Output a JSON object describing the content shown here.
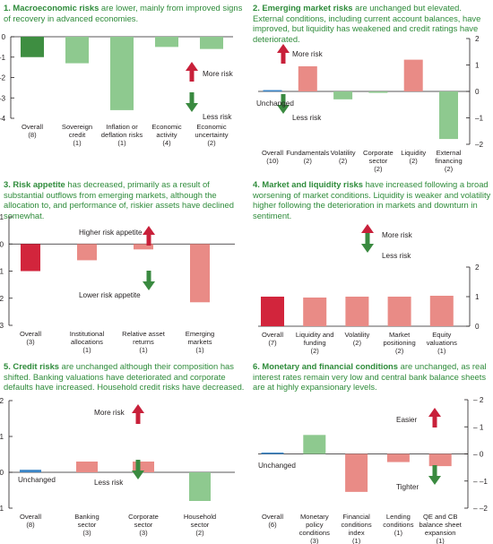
{
  "colors": {
    "caption": "#2e8b3a",
    "dark_green": "#3e8e41",
    "light_green": "#8ec98f",
    "dark_red": "#d2253c",
    "light_red": "#e98b86",
    "blue": "#3a85c6",
    "arrow_green": "#3a8a40",
    "arrow_red": "#c8203a"
  },
  "chart_data": [
    {
      "id": "p1",
      "type": "bar",
      "caption_bold": "1. Macroeconomic risks",
      "caption_rest": " are lower, mainly from improved signs of recovery in advanced economies.",
      "categories": [
        "Overall\n(8)",
        "Sovereign\ncredit\n(1)",
        "Inflation or\ndeflation risks\n(1)",
        "Economic\nactivity\n(4)",
        "Economic\nuncertainty\n(2)"
      ],
      "values": [
        -1.0,
        -1.3,
        -3.6,
        -0.5,
        -0.6
      ],
      "bar_colors": [
        "#3e8e41",
        "#8ec98f",
        "#8ec98f",
        "#8ec98f",
        "#8ec98f"
      ],
      "ylim": [
        -4,
        0
      ],
      "yticks": [
        0,
        -1,
        -2,
        -3,
        -4
      ],
      "yaxis_side": "left",
      "annotations": [
        "More risk",
        "Less risk"
      ]
    },
    {
      "id": "p2",
      "type": "bar",
      "caption_bold": "2. Emerging market risks",
      "caption_rest": " are unchanged but elevated. External conditions, including current account balances, have improved, but liquidity has weakened and credit ratings have deteriorated.",
      "categories": [
        "Overall\n(10)",
        "Fundamentals\n(2)",
        "Volatility\n(2)",
        "Corporate\nsector\n(2)",
        "Liquidity\n(2)",
        "External\nfinancing\n(2)"
      ],
      "values": [
        0.05,
        0.95,
        -0.3,
        -0.02,
        1.2,
        -1.8
      ],
      "bar_colors": [
        "#3a85c6",
        "#e98b86",
        "#8ec98f",
        "#8ec98f",
        "#e98b86",
        "#8ec98f"
      ],
      "ylim": [
        -2,
        2
      ],
      "yticks": [
        2,
        1,
        0,
        -1,
        -2
      ],
      "yaxis_side": "right",
      "annotations": [
        "More risk",
        "Less risk",
        "Unchanged"
      ]
    },
    {
      "id": "p3",
      "type": "bar",
      "caption_bold": "3. Risk appetite",
      "caption_rest": " has decreased, primarily as a result of substantial outflows from emerging markets, although the allocation to, and performance of, riskier assets have declined somewhat.",
      "categories": [
        "Overall\n(3)",
        "Institutional\nallocations\n(1)",
        "Relative asset\nreturns\n(1)",
        "Emerging\nmarkets\n(1)"
      ],
      "values": [
        -1.0,
        -0.6,
        -0.2,
        -2.15
      ],
      "bar_colors": [
        "#d2253c",
        "#e98b86",
        "#e98b86",
        "#e98b86"
      ],
      "ylim": [
        -3,
        1
      ],
      "yticks": [
        1,
        0,
        -1,
        -2,
        -3
      ],
      "yaxis_side": "left",
      "annotations": [
        "Higher risk appetite",
        "Lower risk appetite"
      ]
    },
    {
      "id": "p4",
      "type": "bar",
      "caption_bold": "4. Market and liquidity risks",
      "caption_rest": " have increased following a broad worsening of market conditions. Liquidity is weaker and volatility higher following the deterioration in markets and downturn in sentiment.",
      "categories": [
        "Overall\n(7)",
        "Liquidity and\nfunding\n(2)",
        "Volatility\n(2)",
        "Market\npositioning\n(2)",
        "Equity\nvaluations\n(1)"
      ],
      "values": [
        1.0,
        0.97,
        1.0,
        1.0,
        1.03
      ],
      "bar_colors": [
        "#d2253c",
        "#e98b86",
        "#e98b86",
        "#e98b86",
        "#e98b86"
      ],
      "ylim": [
        0,
        2
      ],
      "yticks": [
        2,
        1,
        0
      ],
      "yaxis_side": "right",
      "annotations": [
        "More risk",
        "Less risk"
      ]
    },
    {
      "id": "p5",
      "type": "bar",
      "caption_bold": "5. Credit risks",
      "caption_rest": " are unchanged although their composition has shifted. Banking valuations have deteriorated and corporate defaults have increased. Household credit risks have decreased.",
      "categories": [
        "Overall\n(8)",
        "Banking\nsector\n(3)",
        "Corporate\nsector\n(3)",
        "Household\nsector\n(2)"
      ],
      "values": [
        0.07,
        0.3,
        0.3,
        -0.8
      ],
      "bar_colors": [
        "#3a85c6",
        "#e98b86",
        "#e98b86",
        "#8ec98f"
      ],
      "ylim": [
        -1,
        2
      ],
      "yticks": [
        2,
        1,
        0,
        -1
      ],
      "yaxis_side": "left",
      "annotations": [
        "More risk",
        "Less risk",
        "Unchanged"
      ]
    },
    {
      "id": "p6",
      "type": "bar",
      "caption_bold": "6. Monetary and financial conditions",
      "caption_rest": " are unchanged, as real interest rates remain very low and central bank balance sheets are at highly expansionary levels.",
      "categories": [
        "Overall\n(6)",
        "Monetary\npolicy\nconditions\n(3)",
        "Financial\nconditions\nindex\n(1)",
        "Lending\nconditions\n(1)",
        "QE and CB\nbalance sheet\nexpansion\n(1)"
      ],
      "values": [
        0.05,
        0.7,
        -1.4,
        -0.3,
        -0.45
      ],
      "bar_colors": [
        "#3a85c6",
        "#8ec98f",
        "#e98b86",
        "#e98b86",
        "#e98b86"
      ],
      "ylim": [
        -2,
        2
      ],
      "yticks": [
        2,
        1,
        0,
        -1,
        -2
      ],
      "yaxis_side": "right",
      "tick_sign_prefix": "– ",
      "annotations": [
        "Easier",
        "Tighter",
        "Unchanged"
      ]
    }
  ]
}
